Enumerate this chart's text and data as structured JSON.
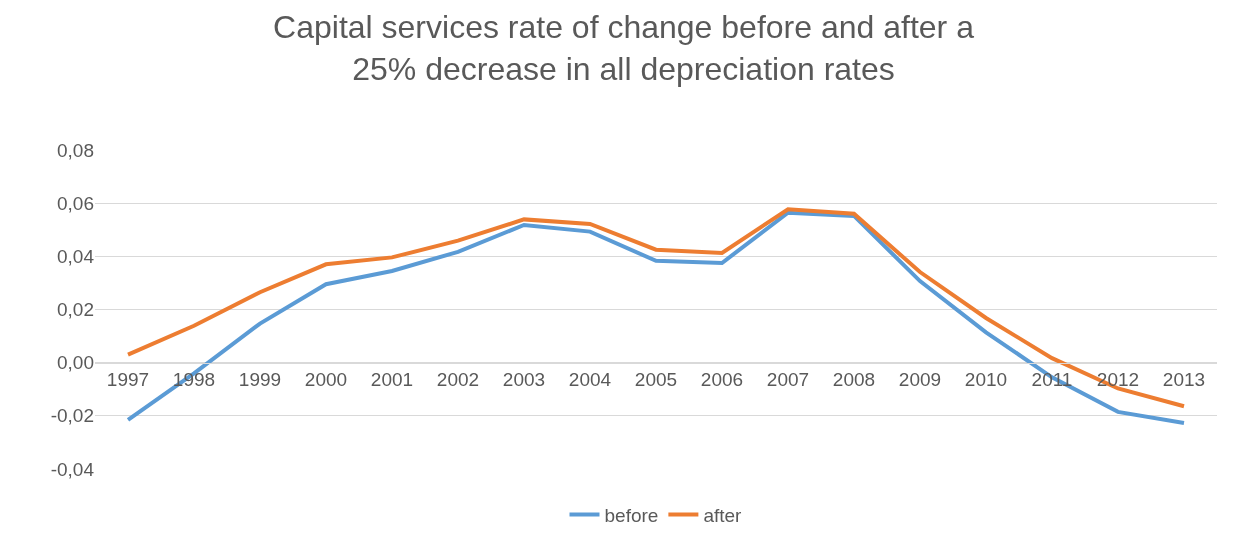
{
  "chart_data": {
    "type": "line",
    "title": "Capital services rate of change before and after a 25% decrease in all depreciation rates",
    "categories": [
      "1997",
      "1998",
      "1999",
      "2000",
      "2001",
      "2002",
      "2003",
      "2004",
      "2005",
      "2006",
      "2007",
      "2008",
      "2009",
      "2010",
      "2011",
      "2012",
      "2013"
    ],
    "series": [
      {
        "name": "before",
        "color": "#5b9bd5",
        "values": [
          -0.0215,
          -0.004,
          0.0147,
          0.0295,
          0.0345,
          0.0417,
          0.0518,
          0.0493,
          0.0383,
          0.0375,
          0.0564,
          0.0552,
          0.0307,
          0.0114,
          -0.0055,
          -0.0185,
          -0.0227
        ]
      },
      {
        "name": "after",
        "color": "#ed7d31",
        "values": [
          0.003,
          0.0139,
          0.0265,
          0.037,
          0.0396,
          0.0459,
          0.0539,
          0.0522,
          0.0425,
          0.0413,
          0.0577,
          0.056,
          0.0341,
          0.0168,
          0.0017,
          -0.0097,
          -0.0164
        ]
      }
    ],
    "ylim": [
      -0.04,
      0.08
    ],
    "yticks": [
      {
        "value": -0.04,
        "label": "-0,04"
      },
      {
        "value": -0.02,
        "label": "-0,02"
      },
      {
        "value": 0,
        "label": "0,00"
      },
      {
        "value": 0.02,
        "label": "0,02"
      },
      {
        "value": 0.04,
        "label": "0,04"
      },
      {
        "value": 0.06,
        "label": "0,06"
      },
      {
        "value": 0.08,
        "label": "0,08"
      }
    ],
    "grid": "y",
    "legend": "bottom",
    "marker": "none",
    "line_style": "solid"
  }
}
